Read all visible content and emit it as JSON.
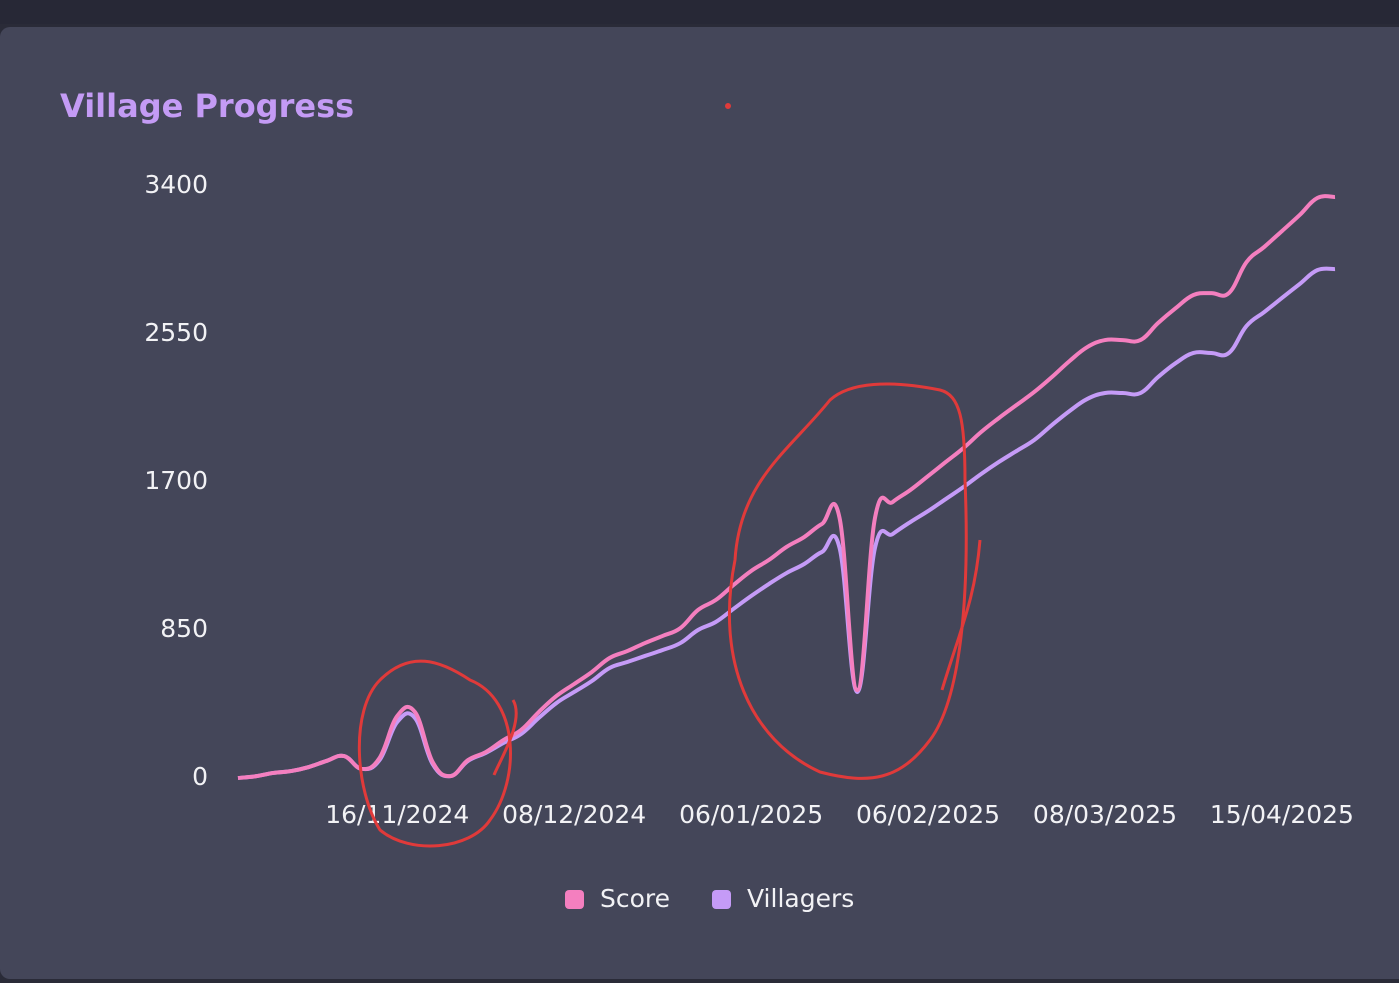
{
  "chart_data": {
    "type": "line",
    "title": "Village Progress",
    "categories": [
      null,
      null,
      null,
      null,
      null,
      null,
      null,
      null,
      null,
      "16/11/2024",
      null,
      null,
      null,
      null,
      null,
      null,
      null,
      null,
      null,
      "08/12/2024",
      null,
      null,
      null,
      null,
      null,
      null,
      null,
      null,
      null,
      "06/01/2025",
      null,
      null,
      null,
      null,
      null,
      null,
      null,
      null,
      null,
      "06/02/2025",
      null,
      null,
      null,
      null,
      null,
      null,
      null,
      null,
      null,
      "08/03/2025",
      null,
      null,
      null,
      null,
      null,
      null,
      null,
      null,
      null,
      "15/04/2025",
      null,
      null,
      null
    ],
    "series": [
      {
        "name": "Score",
        "color": "#f47fbf",
        "values": [
          0,
          10,
          29,
          40,
          63,
          98,
          126,
          52,
          115,
          356,
          379,
          92,
          11,
          103,
          149,
          218,
          276,
          379,
          471,
          540,
          609,
          689,
          729,
          775,
          816,
          861,
          965,
          1022,
          1108,
          1189,
          1252,
          1327,
          1384,
          1459,
          1493,
          505,
          1493,
          1585,
          1654,
          1734,
          1815,
          1895,
          1987,
          2067,
          2142,
          2217,
          2303,
          2395,
          2475,
          2515,
          2515,
          2515,
          2613,
          2699,
          2774,
          2785,
          2785,
          2963,
          3050,
          3141,
          3233,
          3331,
          3337
        ]
      },
      {
        "name": "Villagers",
        "color": "#c59bf7",
        "values": [
          0,
          10,
          29,
          40,
          63,
          98,
          126,
          52,
          103,
          322,
          345,
          80,
          11,
          98,
          144,
          201,
          253,
          345,
          431,
          494,
          557,
          632,
          666,
          701,
          735,
          775,
          850,
          896,
          971,
          1045,
          1114,
          1177,
          1229,
          1298,
          1321,
          494,
          1321,
          1401,
          1470,
          1533,
          1602,
          1671,
          1746,
          1815,
          1878,
          1941,
          2027,
          2108,
          2177,
          2211,
          2211,
          2211,
          2303,
          2383,
          2441,
          2441,
          2441,
          2596,
          2676,
          2757,
          2837,
          2917,
          2923
        ]
      }
    ],
    "ylim": [
      0,
      3400
    ],
    "yticks": [
      0,
      850,
      1700,
      2550,
      3400
    ],
    "grid": false,
    "legend": "bottom"
  }
}
